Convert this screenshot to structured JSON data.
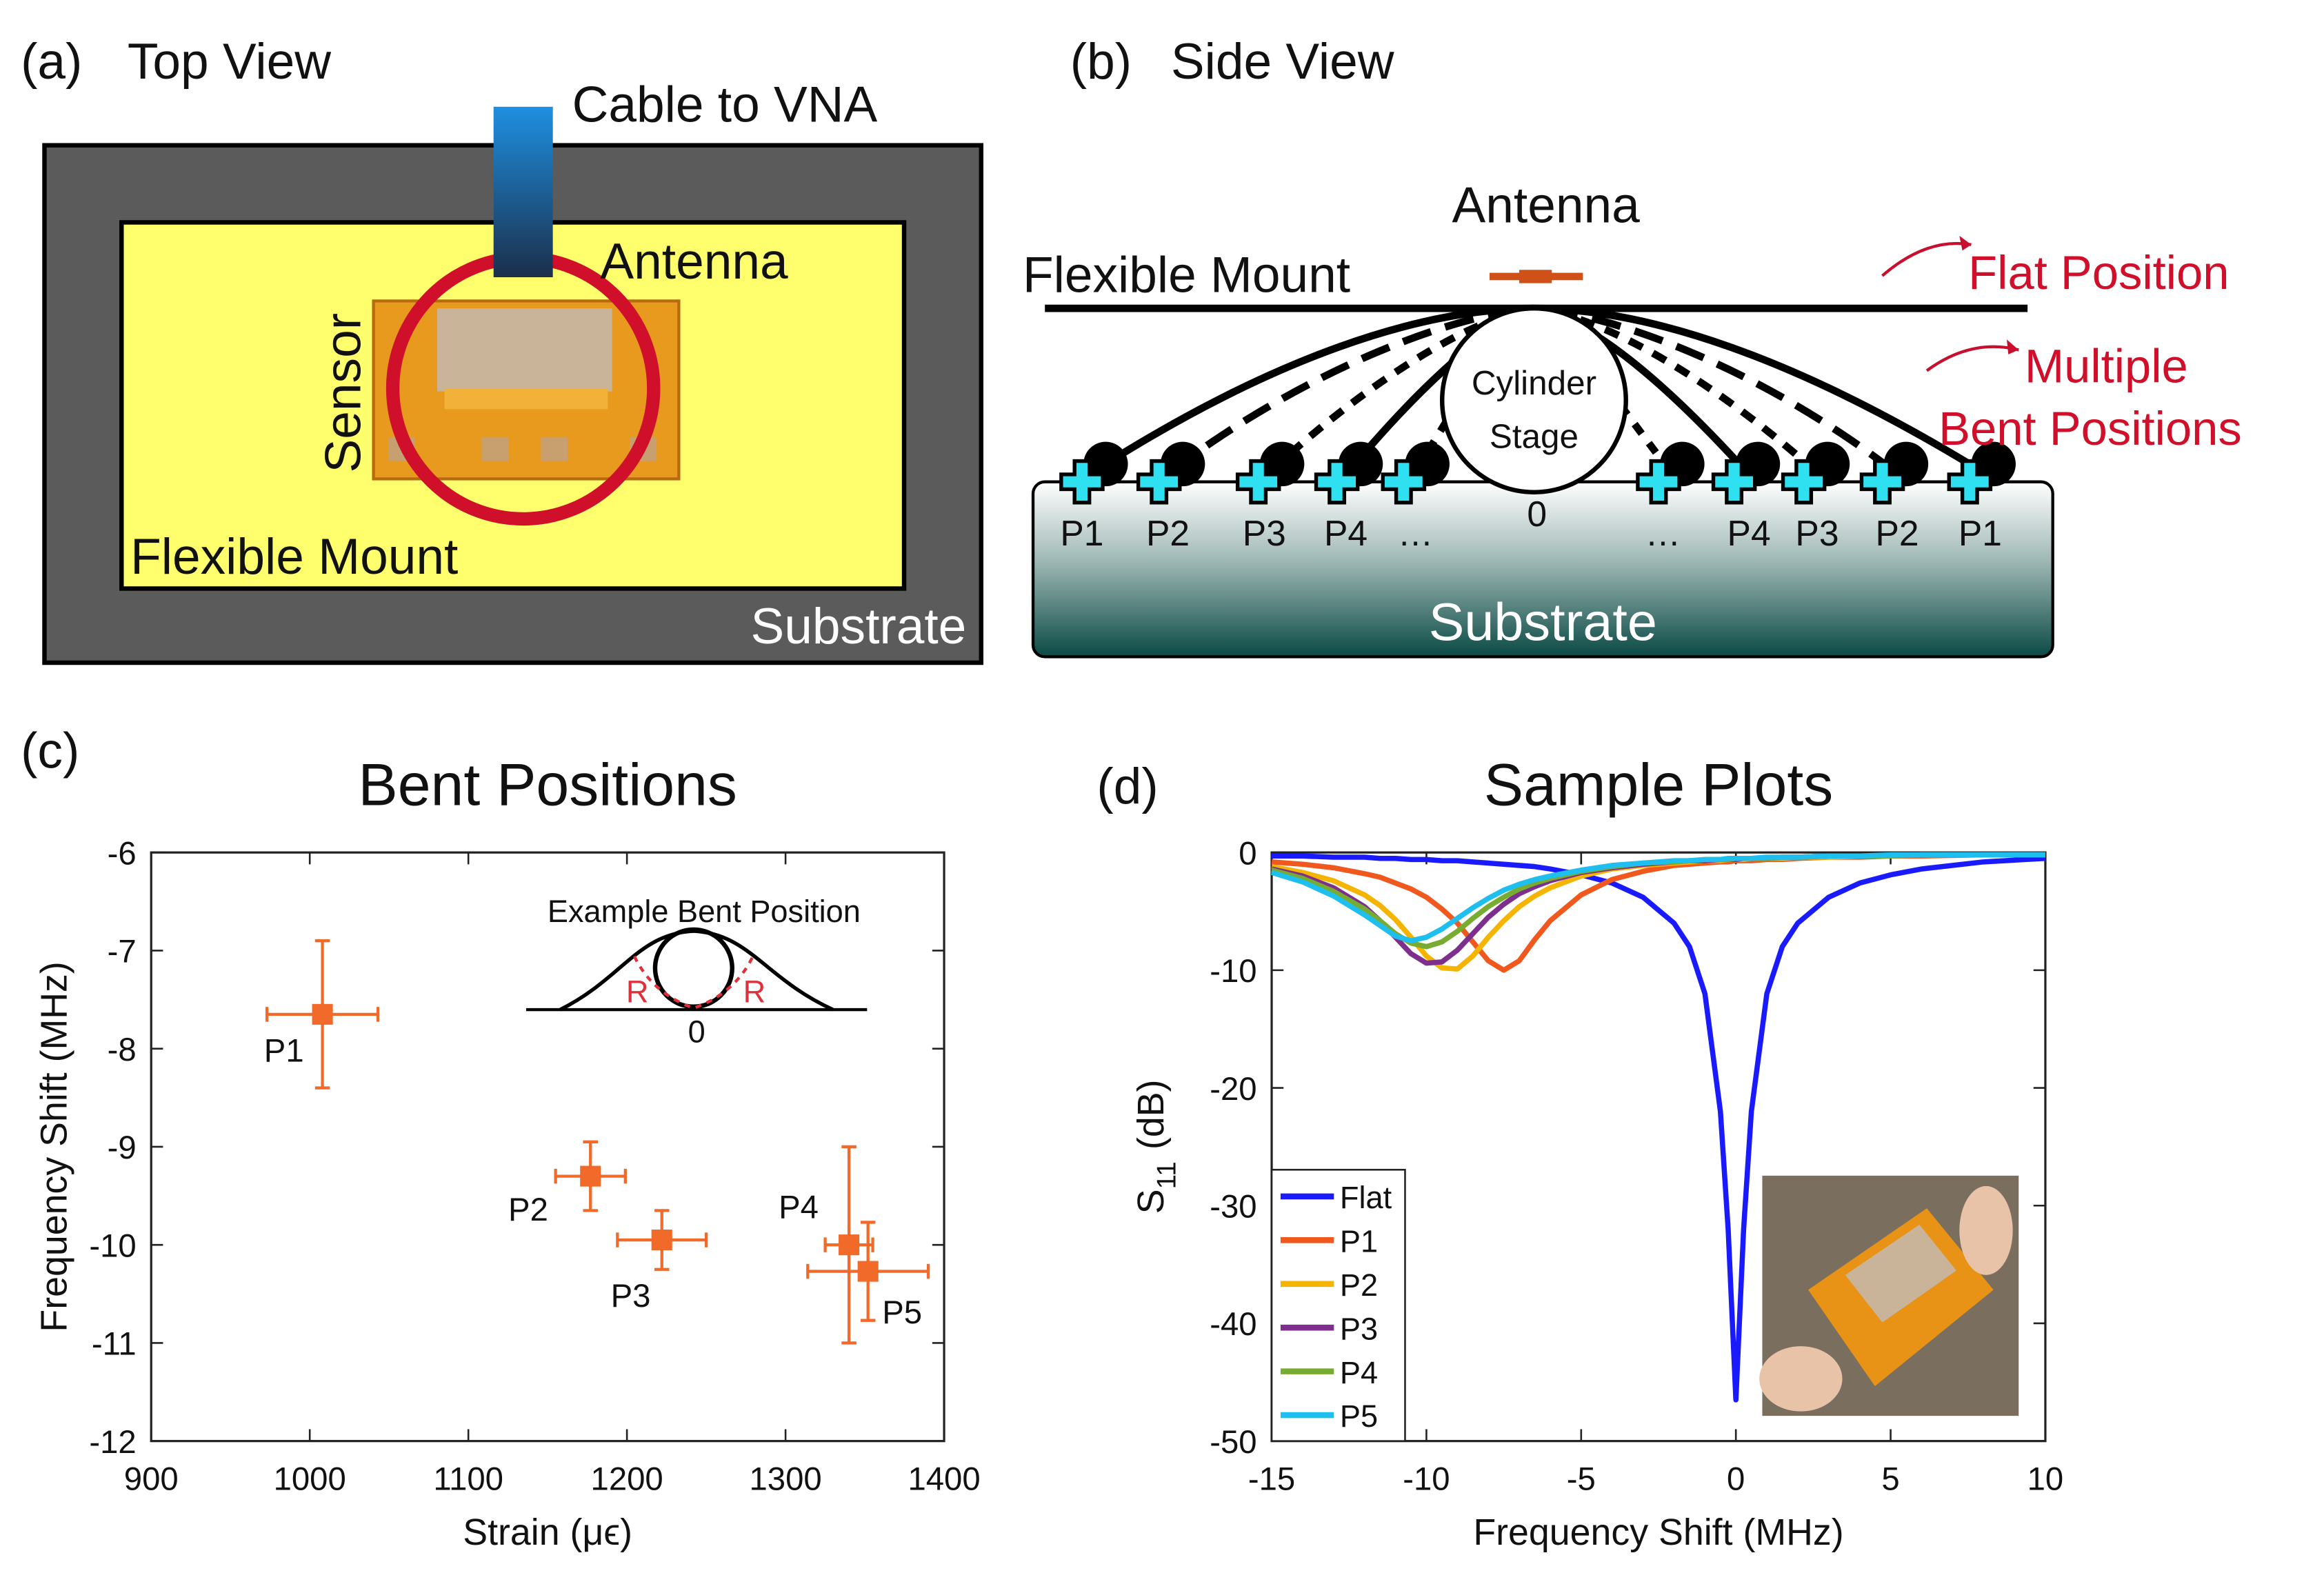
{
  "panels": {
    "a": {
      "label": "(a)",
      "title": "Top View",
      "cable": "Cable to VNA",
      "antenna": "Antenna",
      "sensor": "Sensor",
      "mount": "Flexible Mount",
      "substrate": "Substrate"
    },
    "b": {
      "label": "(b)",
      "title": "Side View",
      "antenna": "Antenna",
      "mount": "Flexible Mount",
      "flat": "Flat Position",
      "bent": [
        "Multiple",
        "Bent Positions"
      ],
      "stage": [
        "Cylinder",
        "Stage"
      ],
      "origin": "0",
      "positions": [
        "P1",
        "P2",
        "P3",
        "P4",
        "…",
        "…",
        "P4",
        "P3",
        "P2",
        "P1"
      ],
      "substrate": "Substrate"
    }
  },
  "chart_data": [
    {
      "type": "scatter",
      "panel_label": "(c)",
      "title": "Bent Positions",
      "xlabel": "Strain (μϵ)",
      "ylabel": "Frequency Shift (MHz)",
      "x": [
        1008,
        1177,
        1222,
        1340,
        1352
      ],
      "values": [
        -7.65,
        -9.3,
        -9.95,
        -10.0,
        -10.27
      ],
      "xerr": [
        35,
        22,
        28,
        15,
        38
      ],
      "yerr": [
        0.75,
        0.35,
        0.3,
        1.0,
        0.5
      ],
      "labels": [
        "P1",
        "P2",
        "P3",
        "P4",
        "P5"
      ],
      "color": "#f26a2a",
      "xlim": [
        900,
        1400
      ],
      "xticks": [
        900,
        1000,
        1100,
        1200,
        1300,
        1400
      ],
      "ylim": [
        -12,
        -6
      ],
      "yticks": [
        -12,
        -11,
        -10,
        -9,
        -8,
        -7,
        -6
      ],
      "inset": {
        "title": "Example Bent Position",
        "radius": [
          "R",
          "R"
        ],
        "origin": "0"
      }
    },
    {
      "type": "line",
      "panel_label": "(d)",
      "title": "Sample Plots",
      "xlabel": "Frequency Shift (MHz)",
      "ylabel": [
        "S",
        "11",
        "(dB)"
      ],
      "x": [
        -15,
        -14,
        -13,
        -12,
        -11.5,
        -11,
        -10.5,
        -10,
        -9.5,
        -9,
        -8.5,
        -8,
        -7.5,
        -7,
        -6.5,
        -6,
        -5,
        -4,
        -3,
        -2,
        -1.5,
        -1,
        -0.5,
        -0.25,
        0,
        0.25,
        0.5,
        1,
        1.5,
        2,
        3,
        4,
        5,
        6,
        8,
        10
      ],
      "series": [
        {
          "name": "Flat",
          "color": "#1a1aff",
          "values": [
            -0.3,
            -0.3,
            -0.4,
            -0.4,
            -0.5,
            -0.5,
            -0.6,
            -0.6,
            -0.7,
            -0.7,
            -0.8,
            -0.9,
            -1,
            -1.1,
            -1.2,
            -1.4,
            -1.9,
            -2.6,
            -3.8,
            -6,
            -8,
            -12,
            -22,
            -32,
            -46.5,
            -32,
            -22,
            -12,
            -8,
            -6,
            -3.8,
            -2.6,
            -1.9,
            -1.4,
            -0.8,
            -0.5
          ]
        },
        {
          "name": "P1",
          "color": "#f0581e",
          "values": [
            -0.8,
            -1,
            -1.3,
            -1.8,
            -2.1,
            -2.6,
            -3.1,
            -3.8,
            -4.8,
            -6,
            -7.6,
            -9.2,
            -10,
            -9.2,
            -7.4,
            -5.8,
            -3.6,
            -2.3,
            -1.6,
            -1.1,
            -1,
            -0.9,
            -0.8,
            -0.8,
            -0.7,
            -0.7,
            -0.7,
            -0.6,
            -0.6,
            -0.5,
            -0.4,
            -0.4,
            -0.3,
            -0.3,
            -0.2,
            -0.2
          ]
        },
        {
          "name": "P2",
          "color": "#f5b400",
          "values": [
            -1.2,
            -1.7,
            -2.4,
            -3.6,
            -4.5,
            -5.7,
            -7.2,
            -8.8,
            -9.8,
            -9.9,
            -8.8,
            -7.2,
            -5.8,
            -4.6,
            -3.7,
            -3,
            -2,
            -1.4,
            -1.1,
            -0.9,
            -0.8,
            -0.7,
            -0.7,
            -0.6,
            -0.6,
            -0.6,
            -0.5,
            -0.5,
            -0.5,
            -0.4,
            -0.4,
            -0.3,
            -0.3,
            -0.2,
            -0.2,
            -0.2
          ]
        },
        {
          "name": "P3",
          "color": "#7e2f8e",
          "values": [
            -1.4,
            -2,
            -3,
            -4.6,
            -5.8,
            -7.2,
            -8.6,
            -9.4,
            -9.3,
            -8.3,
            -6.9,
            -5.5,
            -4.4,
            -3.5,
            -2.9,
            -2.4,
            -1.7,
            -1.3,
            -1,
            -0.8,
            -0.7,
            -0.7,
            -0.6,
            -0.6,
            -0.6,
            -0.5,
            -0.5,
            -0.5,
            -0.4,
            -0.4,
            -0.3,
            -0.3,
            -0.3,
            -0.2,
            -0.2,
            -0.2
          ]
        },
        {
          "name": "P4",
          "color": "#77ac30",
          "values": [
            -1.5,
            -2.2,
            -3.3,
            -4.8,
            -5.8,
            -6.9,
            -7.7,
            -8,
            -7.6,
            -6.7,
            -5.6,
            -4.6,
            -3.8,
            -3.1,
            -2.6,
            -2.2,
            -1.6,
            -1.2,
            -0.9,
            -0.8,
            -0.7,
            -0.6,
            -0.6,
            -0.6,
            -0.5,
            -0.5,
            -0.5,
            -0.5,
            -0.4,
            -0.4,
            -0.3,
            -0.3,
            -0.3,
            -0.2,
            -0.2,
            -0.2
          ]
        },
        {
          "name": "P5",
          "color": "#1ebfee",
          "values": [
            -1.7,
            -2.5,
            -3.7,
            -5.3,
            -6.2,
            -7.1,
            -7.5,
            -7.2,
            -6.5,
            -5.6,
            -4.7,
            -3.9,
            -3.2,
            -2.7,
            -2.3,
            -2,
            -1.5,
            -1.1,
            -0.9,
            -0.7,
            -0.7,
            -0.6,
            -0.6,
            -0.5,
            -0.5,
            -0.5,
            -0.5,
            -0.4,
            -0.4,
            -0.4,
            -0.3,
            -0.3,
            -0.2,
            -0.2,
            -0.2,
            -0.2
          ]
        }
      ],
      "xlim": [
        -15,
        10
      ],
      "xticks": [
        -15,
        -10,
        -5,
        0,
        5,
        10
      ],
      "ylim": [
        -50,
        0
      ],
      "yticks": [
        -50,
        -40,
        -30,
        -20,
        -10,
        0
      ],
      "legend": "lower left"
    }
  ]
}
